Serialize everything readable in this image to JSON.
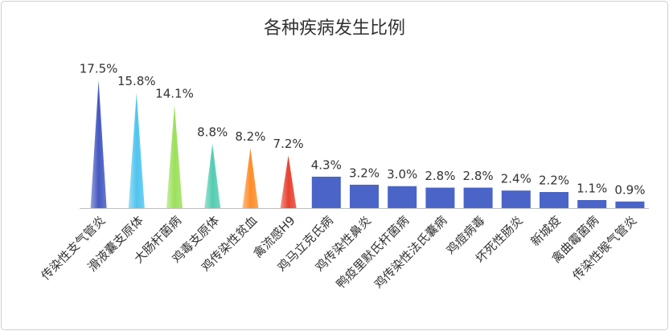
{
  "chart_data": {
    "type": "bar",
    "title": "各种疾病发生比例",
    "categories": [
      "传染性支气管炎",
      "滑液囊支原体",
      "大肠杆菌病",
      "鸡毒支原体",
      "鸡传染性贫血",
      "禽流感H9",
      "鸡马立克氏病",
      "鸡传染性鼻炎",
      "鸭疫里默氏杆菌病",
      "鸡传染性法氏囊病",
      "鸡痘病毒",
      "坏死性肠炎",
      "新城疫",
      "禽曲霉菌病",
      "传染性喉气管炎"
    ],
    "values": [
      17.5,
      15.8,
      14.1,
      8.8,
      8.2,
      7.2,
      4.3,
      3.2,
      3.0,
      2.8,
      2.8,
      2.4,
      2.2,
      1.1,
      0.9
    ],
    "value_labels": [
      "17.5%",
      "15.8%",
      "14.1%",
      "8.8%",
      "8.2%",
      "7.2%",
      "4.3%",
      "3.2%",
      "3.0%",
      "2.8%",
      "2.8%",
      "2.4%",
      "2.2%",
      "1.1%",
      "0.9%"
    ],
    "colors": [
      "#4458c0",
      "#4fc4ef",
      "#9be05a",
      "#52cdb0",
      "#ff8c2a",
      "#e8402f",
      "#4a64c8",
      "#4a64c8",
      "#4a64c8",
      "#4a64c8",
      "#4a64c8",
      "#4a64c8",
      "#4a64c8",
      "#4a64c8",
      "#4a64c8"
    ],
    "bar_shapes": [
      "triangle",
      "triangle",
      "triangle",
      "triangle",
      "triangle",
      "triangle",
      "rect",
      "rect",
      "rect",
      "rect",
      "rect",
      "rect",
      "rect",
      "rect",
      "rect"
    ]
  }
}
